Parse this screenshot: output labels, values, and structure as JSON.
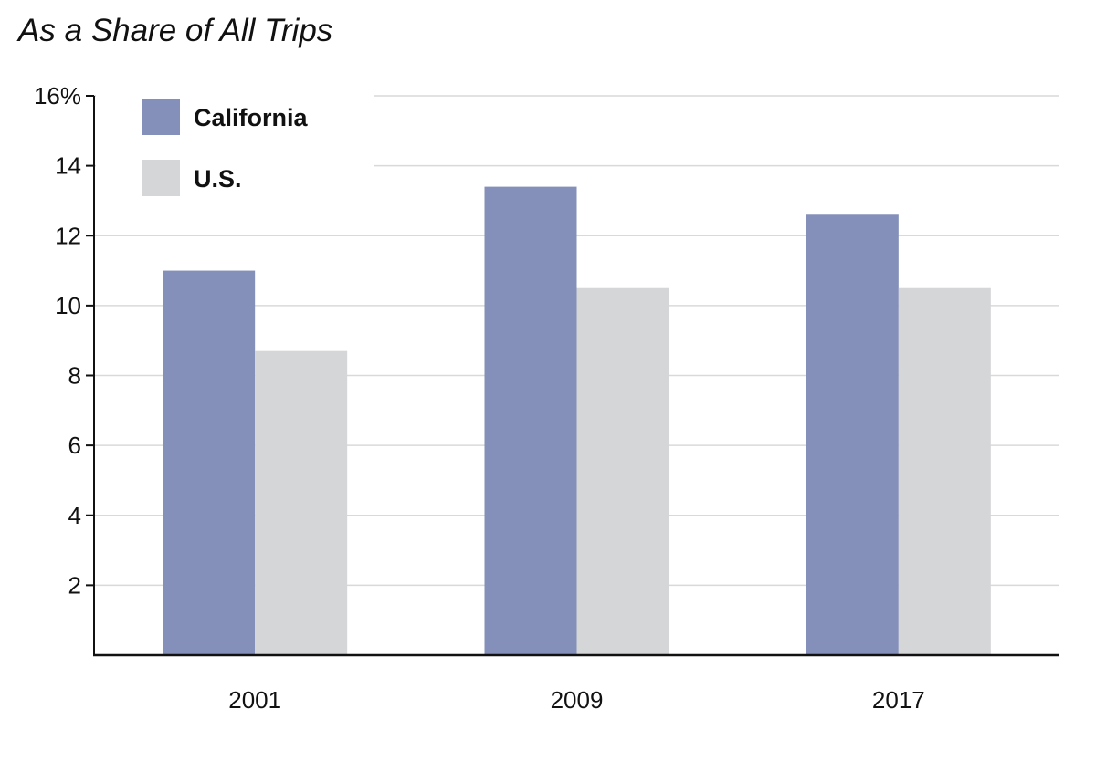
{
  "chart_data": {
    "type": "bar",
    "title": "As a Share of All Trips",
    "categories": [
      "2001",
      "2009",
      "2017"
    ],
    "series": [
      {
        "name": "California",
        "values": [
          11.0,
          13.4,
          12.6
        ],
        "color": "#8490b9"
      },
      {
        "name": "U.S.",
        "values": [
          8.7,
          10.5,
          10.5
        ],
        "color": "#d5d6d8"
      }
    ],
    "ylim": [
      0,
      16
    ],
    "yticks": [
      2,
      4,
      6,
      8,
      10,
      12,
      14,
      16
    ],
    "ytick_labels": [
      "2",
      "4",
      "6",
      "8",
      "10",
      "12",
      "14",
      "16%"
    ],
    "grid": true,
    "legend": "top-left",
    "xlabel": "",
    "ylabel": ""
  }
}
